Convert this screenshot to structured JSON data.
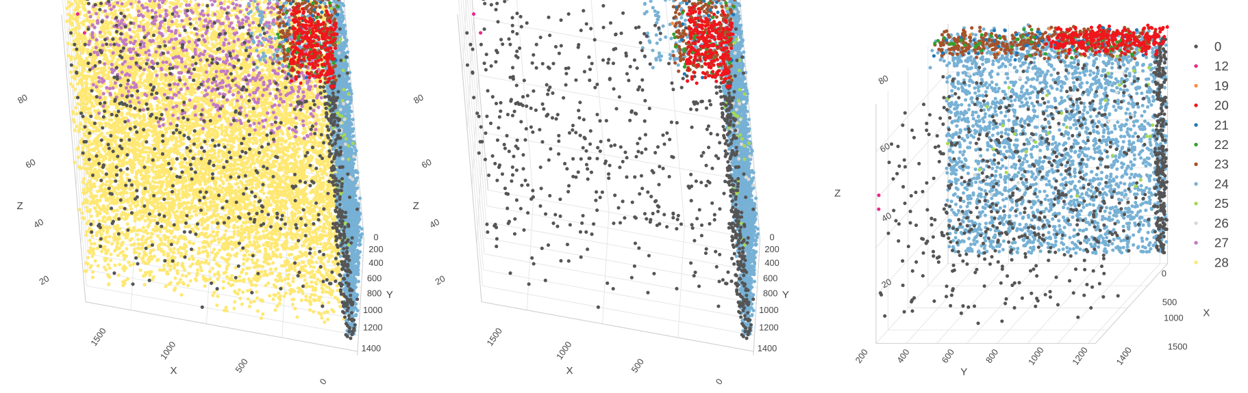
{
  "chart_data": [
    {
      "type": "scatter",
      "projection": "3d",
      "panel": "left",
      "axes": {
        "x": {
          "title": "X",
          "ticks": [
            "0",
            "500",
            "1000",
            "1500"
          ],
          "range": [
            0,
            1800
          ]
        },
        "y": {
          "title": "Y",
          "ticks": [
            "0",
            "200",
            "400",
            "600",
            "800",
            "1000",
            "1200",
            "1400"
          ],
          "range": [
            0,
            1450
          ]
        },
        "z": {
          "title": "Z",
          "ticks": [
            "20",
            "40",
            "60",
            "80"
          ],
          "range": [
            0,
            100
          ]
        }
      },
      "shown_series": [
        "0",
        "12",
        "19",
        "20",
        "21",
        "22",
        "23",
        "24",
        "25",
        "26",
        "27",
        "28"
      ]
    },
    {
      "type": "scatter",
      "projection": "3d",
      "panel": "middle",
      "axes": {
        "x": {
          "title": "X",
          "ticks": [
            "0",
            "500",
            "1000",
            "1500"
          ],
          "range": [
            0,
            1800
          ]
        },
        "y": {
          "title": "Y",
          "ticks": [
            "0",
            "200",
            "400",
            "600",
            "800",
            "1000",
            "1200",
            "1400"
          ],
          "range": [
            0,
            1450
          ]
        },
        "z": {
          "title": "Z",
          "ticks": [
            "20",
            "40",
            "60",
            "80"
          ],
          "range": [
            0,
            100
          ]
        }
      },
      "shown_series": [
        "0",
        "12",
        "19",
        "20",
        "21",
        "22",
        "23",
        "24",
        "25",
        "26"
      ]
    },
    {
      "type": "scatter",
      "projection": "3d",
      "panel": "right",
      "axes": {
        "x": {
          "title": "X",
          "ticks": [
            "0",
            "500",
            "1000",
            "1500"
          ],
          "range": [
            0,
            1800
          ]
        },
        "y": {
          "title": "Y",
          "ticks": [
            "200",
            "400",
            "600",
            "800",
            "1000",
            "1200",
            "1400"
          ],
          "range": [
            0,
            1450
          ]
        },
        "z": {
          "title": "Z",
          "ticks": [
            "20",
            "40",
            "60",
            "80"
          ],
          "range": [
            0,
            100
          ]
        }
      },
      "shown_series": [
        "0",
        "12",
        "19",
        "20",
        "21",
        "22",
        "23",
        "24",
        "25",
        "26"
      ]
    }
  ],
  "series": [
    {
      "name": "0",
      "color": "#555555",
      "clusters": [
        {
          "x": [
            0,
            1800
          ],
          "y": [
            0,
            1400
          ],
          "z": [
            5,
            92
          ],
          "n": 550
        },
        {
          "x": [
            0,
            80
          ],
          "y": [
            1380,
            1450
          ],
          "z": [
            5,
            95
          ],
          "n": 260
        }
      ]
    },
    {
      "name": "12",
      "color": "#e7298a",
      "clusters": [
        {
          "x": [
            1750,
            1800
          ],
          "y": [
            0,
            40
          ],
          "z": [
            55,
            62
          ],
          "n": 2
        }
      ]
    },
    {
      "name": "19",
      "color": "#fd8d3c",
      "clusters": [
        {
          "x": [
            0,
            400
          ],
          "y": [
            0,
            1400
          ],
          "z": [
            92,
            100
          ],
          "n": 8
        }
      ]
    },
    {
      "name": "20",
      "color": "#f0161c",
      "clusters": [
        {
          "x": [
            0,
            300
          ],
          "y": [
            700,
            1450
          ],
          "z": [
            92,
            100
          ],
          "n": 260
        }
      ]
    },
    {
      "name": "21",
      "color": "#1f78b4",
      "clusters": [
        {
          "x": [
            0,
            400
          ],
          "y": [
            0,
            1400
          ],
          "z": [
            92,
            100
          ],
          "n": 40
        }
      ]
    },
    {
      "name": "22",
      "color": "#33a02c",
      "clusters": [
        {
          "x": [
            0,
            400
          ],
          "y": [
            0,
            1400
          ],
          "z": [
            92,
            100
          ],
          "n": 60
        }
      ]
    },
    {
      "name": "23",
      "color": "#a6522a",
      "clusters": [
        {
          "x": [
            0,
            400
          ],
          "y": [
            0,
            1400
          ],
          "z": [
            92,
            100
          ],
          "n": 380
        }
      ]
    },
    {
      "name": "24",
      "color": "#77b1d5",
      "clusters": [
        {
          "x": [
            0,
            60
          ],
          "y": [
            0,
            1450
          ],
          "z": [
            5,
            95
          ],
          "n": 2600
        },
        {
          "x": [
            0,
            600
          ],
          "y": [
            0,
            1400
          ],
          "z": [
            92,
            100
          ],
          "n": 250
        }
      ]
    },
    {
      "name": "25",
      "color": "#a6d854",
      "clusters": [
        {
          "x": [
            0,
            60
          ],
          "y": [
            0,
            1400
          ],
          "z": [
            20,
            95
          ],
          "n": 35
        }
      ]
    },
    {
      "name": "26",
      "color": "#d9d9d9",
      "clusters": [
        {
          "x": [
            0,
            60
          ],
          "y": [
            0,
            1400
          ],
          "z": [
            20,
            95
          ],
          "n": 25
        }
      ]
    },
    {
      "name": "27",
      "color": "#c17bc4",
      "clusters": [
        {
          "x": [
            200,
            1700
          ],
          "y": [
            0,
            700
          ],
          "z": [
            45,
            92
          ],
          "n": 900
        }
      ]
    },
    {
      "name": "28",
      "color": "#ffe873",
      "clusters": [
        {
          "x": [
            80,
            1800
          ],
          "y": [
            0,
            1400
          ],
          "z": [
            5,
            92
          ],
          "n": 9000
        }
      ]
    }
  ]
}
